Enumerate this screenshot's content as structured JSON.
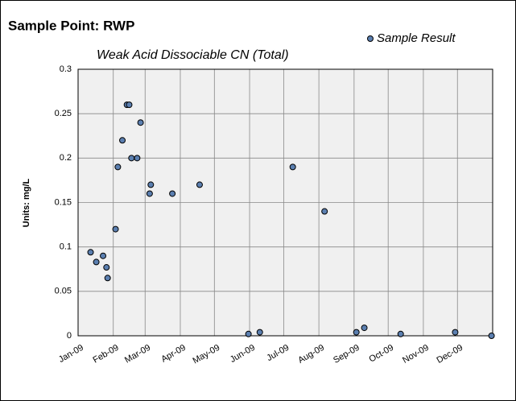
{
  "chart_data": {
    "type": "scatter",
    "title": "Sample Point:  RWP",
    "subtitle": "Weak Acid Dissociable CN (Total)",
    "y_label": "Units:  mg/L",
    "legend": "top-right",
    "grid": true,
    "series": [
      {
        "name": "Sample Result",
        "color": "#5b7fb0",
        "x": [
          11,
          16,
          22,
          25,
          26,
          33,
          35,
          39,
          43,
          45,
          47,
          52,
          55,
          63,
          64,
          83,
          107,
          150,
          160,
          189,
          217,
          245,
          252,
          284,
          332,
          364
        ],
        "values": [
          0.094,
          0.083,
          0.09,
          0.077,
          0.065,
          0.12,
          0.19,
          0.22,
          0.26,
          0.26,
          0.2,
          0.2,
          0.24,
          0.16,
          0.17,
          0.16,
          0.17,
          0.002,
          0.004,
          0.19,
          0.14,
          0.004,
          0.009,
          0.002,
          0.004,
          0
        ]
      }
    ],
    "xlim": [
      0,
      365
    ],
    "xticks": [
      {
        "value": 0,
        "label": "Jan-09"
      },
      {
        "value": 31,
        "label": "Feb-09"
      },
      {
        "value": 59,
        "label": "Mar-09"
      },
      {
        "value": 90,
        "label": "Apr-09"
      },
      {
        "value": 120,
        "label": "May-09"
      },
      {
        "value": 151,
        "label": "Jun-09"
      },
      {
        "value": 181,
        "label": "Jul-09"
      },
      {
        "value": 212,
        "label": "Aug-09"
      },
      {
        "value": 243,
        "label": "Sep-09"
      },
      {
        "value": 273,
        "label": "Oct-09"
      },
      {
        "value": 304,
        "label": "Nov-09"
      },
      {
        "value": 334,
        "label": "Dec-09"
      }
    ],
    "ylim": [
      0,
      0.3
    ],
    "yticks": [
      0,
      0.05,
      0.1,
      0.15,
      0.2,
      0.25,
      0.3
    ]
  }
}
